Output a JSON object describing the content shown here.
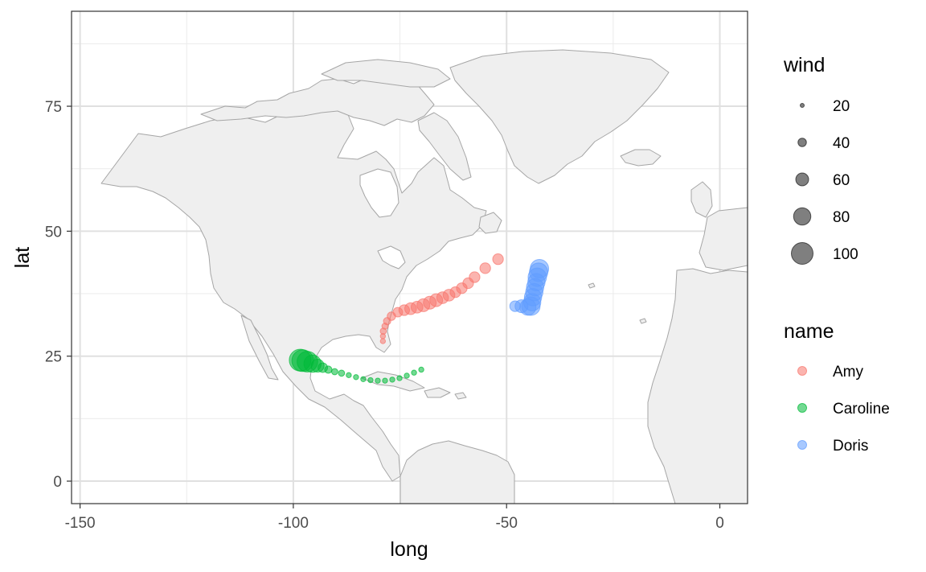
{
  "chart_data": {
    "type": "scatter",
    "title": "",
    "xlabel": "long",
    "ylabel": "lat",
    "xlim": [
      -152,
      6.5
    ],
    "ylim": [
      -4.5,
      94
    ],
    "x_ticks": [
      -150,
      -100,
      -50,
      0
    ],
    "x_tick_labels": [
      "-150",
      "-100",
      "-50",
      "0"
    ],
    "y_ticks": [
      0,
      25,
      50,
      75
    ],
    "y_tick_labels": [
      "0",
      "25",
      "50",
      "75"
    ],
    "grid": true,
    "basemap": "world map polygons (North America, Greenland, West Africa)",
    "size_legend": {
      "title": "wind",
      "values": [
        20,
        40,
        60,
        80,
        100
      ],
      "labels": [
        "20",
        "40",
        "60",
        "80",
        "100"
      ]
    },
    "color_legend": {
      "title": "name",
      "placement": "right"
    },
    "series": [
      {
        "name": "Amy",
        "color": "#F8766D",
        "points": [
          {
            "x": -79.0,
            "y": 28.0,
            "wind": 25
          },
          {
            "x": -79.0,
            "y": 29.0,
            "wind": 25
          },
          {
            "x": -78.9,
            "y": 30.0,
            "wind": 30
          },
          {
            "x": -78.5,
            "y": 31.0,
            "wind": 30
          },
          {
            "x": -78.0,
            "y": 32.0,
            "wind": 35
          },
          {
            "x": -77.0,
            "y": 33.0,
            "wind": 40
          },
          {
            "x": -75.5,
            "y": 33.8,
            "wind": 45
          },
          {
            "x": -74.0,
            "y": 34.2,
            "wind": 50
          },
          {
            "x": -72.5,
            "y": 34.5,
            "wind": 55
          },
          {
            "x": -71.0,
            "y": 34.8,
            "wind": 55
          },
          {
            "x": -69.5,
            "y": 35.2,
            "wind": 60
          },
          {
            "x": -68.0,
            "y": 35.7,
            "wind": 60
          },
          {
            "x": -66.5,
            "y": 36.2,
            "wind": 60
          },
          {
            "x": -65.0,
            "y": 36.7,
            "wind": 55
          },
          {
            "x": -63.5,
            "y": 37.2,
            "wind": 55
          },
          {
            "x": -62.0,
            "y": 37.8,
            "wind": 50
          },
          {
            "x": -60.5,
            "y": 38.6,
            "wind": 50
          },
          {
            "x": -59.0,
            "y": 39.6,
            "wind": 50
          },
          {
            "x": -57.5,
            "y": 40.8,
            "wind": 50
          },
          {
            "x": -55.0,
            "y": 42.6,
            "wind": 50
          },
          {
            "x": -52.0,
            "y": 44.4,
            "wind": 50
          }
        ]
      },
      {
        "name": "Caroline",
        "color": "#00BA38",
        "points": [
          {
            "x": -70.0,
            "y": 22.3,
            "wind": 25
          },
          {
            "x": -71.7,
            "y": 21.7,
            "wind": 25
          },
          {
            "x": -73.4,
            "y": 21.1,
            "wind": 25
          },
          {
            "x": -75.1,
            "y": 20.6,
            "wind": 25
          },
          {
            "x": -76.8,
            "y": 20.3,
            "wind": 25
          },
          {
            "x": -78.5,
            "y": 20.1,
            "wind": 25
          },
          {
            "x": -80.2,
            "y": 20.1,
            "wind": 25
          },
          {
            "x": -81.9,
            "y": 20.2,
            "wind": 25
          },
          {
            "x": -83.6,
            "y": 20.4,
            "wind": 25
          },
          {
            "x": -85.3,
            "y": 20.8,
            "wind": 25
          },
          {
            "x": -87.0,
            "y": 21.2,
            "wind": 25
          },
          {
            "x": -88.7,
            "y": 21.6,
            "wind": 30
          },
          {
            "x": -90.3,
            "y": 21.9,
            "wind": 30
          },
          {
            "x": -91.8,
            "y": 22.3,
            "wind": 35
          },
          {
            "x": -93.1,
            "y": 22.7,
            "wind": 45
          },
          {
            "x": -94.3,
            "y": 23.1,
            "wind": 60
          },
          {
            "x": -95.5,
            "y": 23.5,
            "wind": 80
          },
          {
            "x": -96.7,
            "y": 23.9,
            "wind": 95
          },
          {
            "x": -97.8,
            "y": 24.1,
            "wind": 100
          },
          {
            "x": -98.4,
            "y": 24.2,
            "wind": 100
          }
        ]
      },
      {
        "name": "Doris",
        "color": "#619CFF",
        "points": [
          {
            "x": -48.0,
            "y": 35.0,
            "wind": 50
          },
          {
            "x": -46.5,
            "y": 35.0,
            "wind": 60
          },
          {
            "x": -45.0,
            "y": 34.8,
            "wind": 75
          },
          {
            "x": -44.3,
            "y": 35.0,
            "wind": 85
          },
          {
            "x": -44.0,
            "y": 35.8,
            "wind": 80
          },
          {
            "x": -43.8,
            "y": 36.8,
            "wind": 80
          },
          {
            "x": -43.5,
            "y": 37.8,
            "wind": 80
          },
          {
            "x": -43.3,
            "y": 38.8,
            "wind": 80
          },
          {
            "x": -43.0,
            "y": 39.8,
            "wind": 80
          },
          {
            "x": -42.8,
            "y": 40.8,
            "wind": 85
          },
          {
            "x": -42.5,
            "y": 41.8,
            "wind": 85
          },
          {
            "x": -42.3,
            "y": 42.5,
            "wind": 85
          }
        ]
      }
    ]
  }
}
